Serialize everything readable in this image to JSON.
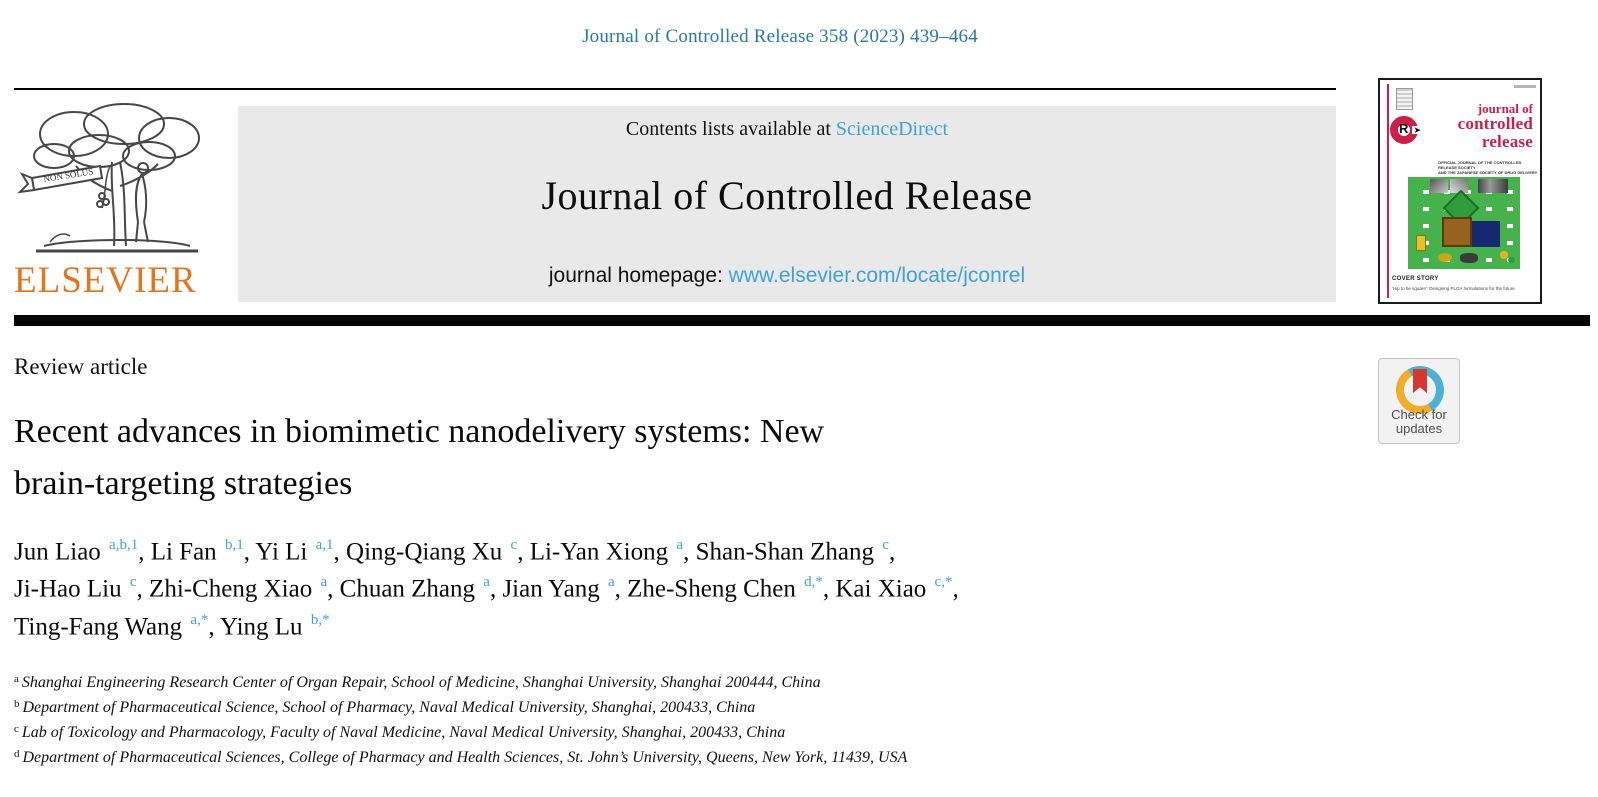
{
  "page": {
    "citation": "Journal of Controlled Release 358 (2023) 439–464"
  },
  "masthead": {
    "contents_prefix": "Contents lists available at ",
    "sciencedirect_label": "ScienceDirect",
    "journal_title": "Journal of Controlled Release",
    "homepage_prefix": "journal homepage: ",
    "homepage_url": "www.elsevier.com/locate/jconrel",
    "publisher_wordmark": "ELSEVIER",
    "publisher_motto": "NON SOLUS"
  },
  "cover": {
    "title_line1": "journal of",
    "title_line2": "controlled",
    "title_line3": "release",
    "logo_letter": "R",
    "logo_arrow": "➤",
    "society_line1": "OFFICIAL JOURNAL OF THE CONTROLLED RELEASE SOCIETY",
    "society_line2": "AND THE JAPANESE SOCIETY OF DRUG DELIVERY SYSTEM",
    "cover_story_label": "COVER STORY",
    "cover_story_text": "'Hip to be square': Designing PLGA formulations for the future"
  },
  "article": {
    "type_label": "Review article",
    "title_lines": [
      "Recent advances in biomimetic nanodelivery systems: New",
      "brain-targeting strategies"
    ],
    "author_lines": [
      [
        {
          "name": "Jun Liao",
          "sup": "a,b,1"
        },
        {
          "name": "Li Fan",
          "sup": "b,1"
        },
        {
          "name": "Yi Li",
          "sup": "a,1"
        },
        {
          "name": "Qing-Qiang Xu",
          "sup": "c"
        },
        {
          "name": "Li-Yan Xiong",
          "sup": "a"
        },
        {
          "name": "Shan-Shan Zhang",
          "sup": "c"
        }
      ],
      [
        {
          "name": "Ji-Hao Liu",
          "sup": "c"
        },
        {
          "name": "Zhi-Cheng Xiao",
          "sup": "a"
        },
        {
          "name": "Chuan Zhang",
          "sup": "a"
        },
        {
          "name": "Jian Yang",
          "sup": "a"
        },
        {
          "name": "Zhe-Sheng Chen",
          "sup": "d,*"
        },
        {
          "name": "Kai Xiao",
          "sup": "c,*"
        }
      ],
      [
        {
          "name": "Ting-Fang Wang",
          "sup": "a,*"
        },
        {
          "name": "Ying Lu",
          "sup": "b,*"
        }
      ]
    ],
    "affiliations": [
      {
        "sup": "a",
        "text": "Shanghai Engineering Research Center of Organ Repair, School of Medicine, Shanghai University, Shanghai 200444, China"
      },
      {
        "sup": "b",
        "text": "Department of Pharmaceutical Science, School of Pharmacy, Naval Medical University, Shanghai, 200433, China"
      },
      {
        "sup": "c",
        "text": "Lab of Toxicology and Pharmacology, Faculty of Naval Medicine, Naval Medical University, Shanghai, 200433, China"
      },
      {
        "sup": "d",
        "text": "Department of Pharmaceutical Sciences, College of Pharmacy and Health Sciences, St. John’s University, Queens, New York, 11439, USA"
      }
    ]
  },
  "badge": {
    "line1": "Check for",
    "line2": "updates"
  },
  "colors": {
    "citation_blue": "#2878a8",
    "link_blue": "#41a2d8",
    "elsevier_orange": "#e2751d",
    "cover_red": "#cc1f4a",
    "banner_gray": "#e9e9e9",
    "badge_yellow": "#f0ac2a",
    "badge_blue": "#4fb0d6",
    "badge_red": "#d6382f"
  }
}
